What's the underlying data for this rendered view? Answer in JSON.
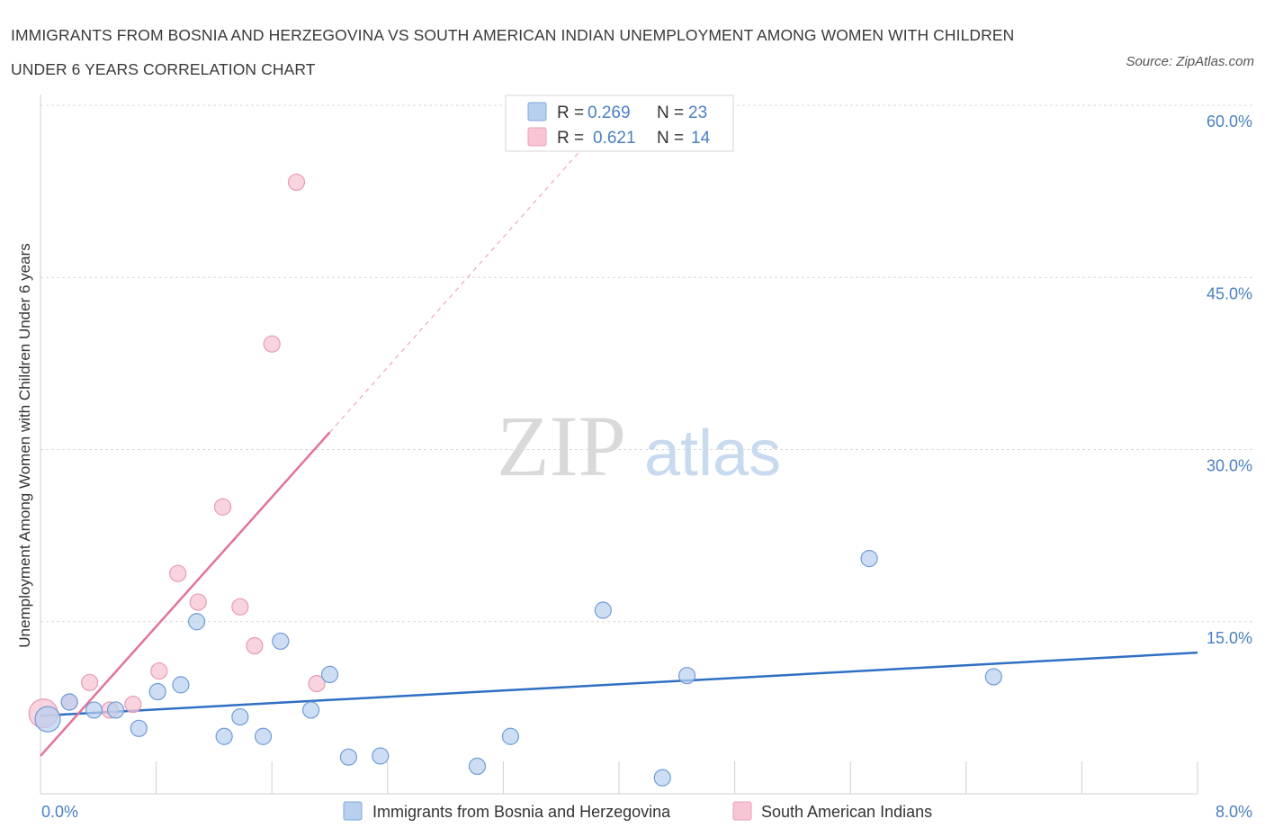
{
  "title": "IMMIGRANTS FROM BOSNIA AND HERZEGOVINA VS SOUTH AMERICAN INDIAN UNEMPLOYMENT AMONG WOMEN WITH CHILDREN UNDER 6 YEARS CORRELATION CHART",
  "source": "Source: ZipAtlas.com",
  "watermark": {
    "zip": "ZIP",
    "atlas": "atlas"
  },
  "colors": {
    "blue": "#4a7fc1",
    "blue_fill": "#b8d0f0",
    "blue_line": "#2f6fc4",
    "pink": "#e37399",
    "pink_fill": "#f7c5d4",
    "grid": "#d8d8d8"
  },
  "legend": {
    "rows": [
      {
        "r_label": "R =",
        "r_value": "0.269",
        "n_label": "N =",
        "n_value": "23"
      },
      {
        "r_label": "R =",
        "r_value": "0.621",
        "n_label": "N =",
        "n_value": "14"
      }
    ]
  },
  "chart_data": {
    "type": "scatter",
    "title": "IMMIGRANTS FROM BOSNIA AND HERZEGOVINA VS SOUTH AMERICAN INDIAN UNEMPLOYMENT AMONG WOMEN WITH CHILDREN UNDER 6 YEARS CORRELATION CHART",
    "xlabel": "",
    "ylabel": "Unemployment Among Women with Children Under 6 years",
    "xlim": [
      0,
      8
    ],
    "ylim": [
      0,
      60
    ],
    "x_tick_labels": [
      "0.0%",
      "8.0%"
    ],
    "y_ticks": [
      15,
      30,
      45,
      60
    ],
    "y_tick_labels": [
      "15.0%",
      "30.0%",
      "45.0%",
      "60.0%"
    ],
    "grid": true,
    "legend_position": "bottom",
    "series": [
      {
        "name": "Immigrants from Bosnia and Herzegovina",
        "points": [
          [
            0.05,
            6.5,
            14
          ],
          [
            0.2,
            8.0,
            9
          ],
          [
            0.37,
            7.3,
            9
          ],
          [
            0.52,
            7.3,
            9
          ],
          [
            0.68,
            5.7,
            9
          ],
          [
            0.81,
            8.9,
            9
          ],
          [
            0.97,
            9.5,
            9
          ],
          [
            1.08,
            15.0,
            9
          ],
          [
            1.27,
            5.0,
            9
          ],
          [
            1.38,
            6.7,
            9
          ],
          [
            1.54,
            5.0,
            9
          ],
          [
            1.66,
            13.3,
            9
          ],
          [
            1.87,
            7.3,
            9
          ],
          [
            2.0,
            10.4,
            9
          ],
          [
            2.13,
            3.2,
            9
          ],
          [
            2.35,
            3.3,
            9
          ],
          [
            3.02,
            2.4,
            9
          ],
          [
            3.25,
            5.0,
            9
          ],
          [
            3.89,
            16.0,
            9
          ],
          [
            4.3,
            1.4,
            9
          ],
          [
            4.47,
            10.3,
            9
          ],
          [
            5.73,
            20.5,
            9
          ],
          [
            6.59,
            10.2,
            9
          ]
        ],
        "trend": {
          "x": [
            0,
            8
          ],
          "y": [
            6.8,
            12.3
          ]
        }
      },
      {
        "name": "South American Indians",
        "points": [
          [
            0.02,
            7.0,
            16
          ],
          [
            0.2,
            8.0,
            9
          ],
          [
            0.34,
            9.7,
            9
          ],
          [
            0.48,
            7.3,
            9
          ],
          [
            0.64,
            7.8,
            9
          ],
          [
            0.82,
            10.7,
            9
          ],
          [
            0.95,
            19.2,
            9
          ],
          [
            1.09,
            16.7,
            9
          ],
          [
            1.26,
            25.0,
            9
          ],
          [
            1.38,
            16.3,
            9
          ],
          [
            1.48,
            12.9,
            9
          ],
          [
            1.6,
            39.2,
            9
          ],
          [
            1.77,
            53.3,
            9
          ],
          [
            1.91,
            9.6,
            9
          ]
        ],
        "trend": {
          "x": [
            0,
            2.0
          ],
          "y": [
            3.3,
            31.5
          ]
        },
        "trend_extension": {
          "x": [
            2.0,
            3.8
          ],
          "y": [
            31.5,
            57.0
          ]
        }
      }
    ]
  }
}
